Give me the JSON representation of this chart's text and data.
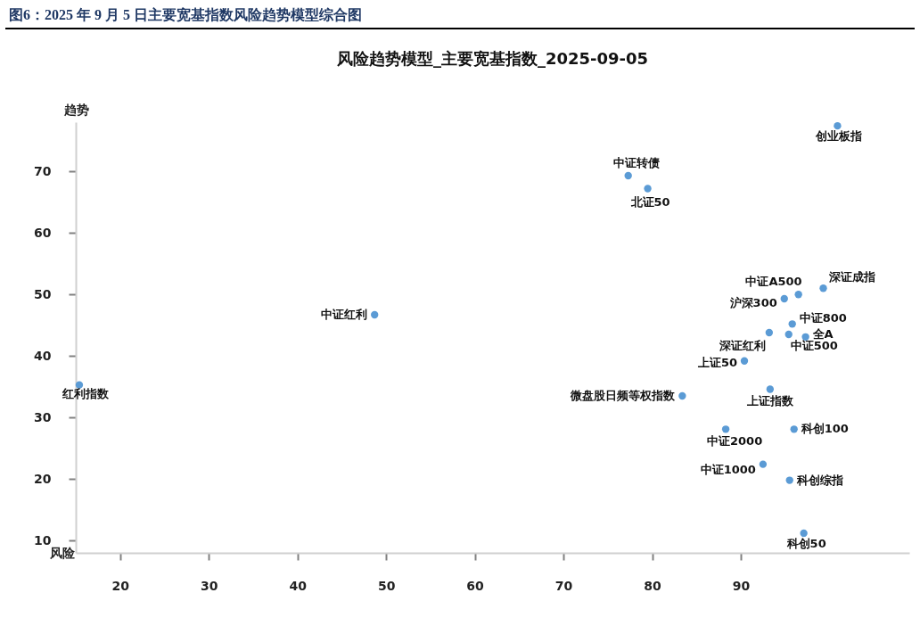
{
  "chart_data": {
    "type": "scatter",
    "title": "图6：2025 年 9 月 5 日主要宽基指数风险趋势模型综合图",
    "subtitle": "风险趋势模型_主要宽基指数_2025-09-05",
    "xlabel": "风险",
    "ylabel": "趋势",
    "xlim": [
      15,
      109
    ],
    "xticks": [
      20,
      30,
      40,
      50,
      60,
      70,
      80,
      90
    ],
    "ylim": [
      8,
      78
    ],
    "yticks": [
      10,
      20,
      30,
      40,
      50,
      60,
      70
    ],
    "grid": false,
    "legend": false,
    "marker": "circle",
    "series": [
      {
        "name": "红利指数",
        "color": "#5b9bd5",
        "x": [
          15.4
        ],
        "values": [
          35.3
        ]
      },
      {
        "name": "中证红利",
        "color": "#5b9bd5",
        "x": [
          48.7
        ],
        "values": [
          46.7
        ]
      },
      {
        "name": "中证转债",
        "color": "#5b9bd5",
        "x": [
          77.3
        ],
        "values": [
          69.3
        ]
      },
      {
        "name": "北证50",
        "color": "#5b9bd5",
        "x": [
          79.5
        ],
        "values": [
          67.2
        ]
      },
      {
        "name": "微盘股日频等权指数",
        "color": "#5b9bd5",
        "x": [
          83.4
        ],
        "values": [
          33.5
        ]
      },
      {
        "name": "创业板指",
        "color": "#5b9bd5",
        "x": [
          100.9
        ],
        "values": [
          77.4
        ]
      },
      {
        "name": "中证A500",
        "color": "#5b9bd5",
        "x": [
          96.5
        ],
        "values": [
          50.0
        ]
      },
      {
        "name": "深证成指",
        "color": "#5b9bd5",
        "x": [
          99.3
        ],
        "values": [
          51.0
        ]
      },
      {
        "name": "沪深300",
        "color": "#5b9bd5",
        "x": [
          94.9
        ],
        "values": [
          49.3
        ]
      },
      {
        "name": "中证800",
        "color": "#5b9bd5",
        "x": [
          95.8
        ],
        "values": [
          45.2
        ]
      },
      {
        "name": "深证红利",
        "color": "#5b9bd5",
        "x": [
          93.2
        ],
        "values": [
          43.8
        ]
      },
      {
        "name": "中证500",
        "color": "#5b9bd5",
        "x": [
          95.4
        ],
        "values": [
          43.5
        ]
      },
      {
        "name": "全A",
        "color": "#5b9bd5",
        "x": [
          97.3
        ],
        "values": [
          43.1
        ]
      },
      {
        "name": "上证50",
        "color": "#5b9bd5",
        "x": [
          90.4
        ],
        "values": [
          39.2
        ]
      },
      {
        "name": "上证指数",
        "color": "#5b9bd5",
        "x": [
          93.3
        ],
        "values": [
          34.6
        ]
      },
      {
        "name": "中证2000",
        "color": "#5b9bd5",
        "x": [
          88.3
        ],
        "values": [
          28.1
        ]
      },
      {
        "name": "科创100",
        "color": "#5b9bd5",
        "x": [
          96.0
        ],
        "values": [
          28.1
        ]
      },
      {
        "name": "中证1000",
        "color": "#5b9bd5",
        "x": [
          92.5
        ],
        "values": [
          22.4
        ]
      },
      {
        "name": "科创综指",
        "color": "#5b9bd5",
        "x": [
          95.5
        ],
        "values": [
          19.8
        ]
      },
      {
        "name": "科创50",
        "color": "#5b9bd5",
        "x": [
          97.1
        ],
        "values": [
          11.2
        ]
      }
    ]
  }
}
